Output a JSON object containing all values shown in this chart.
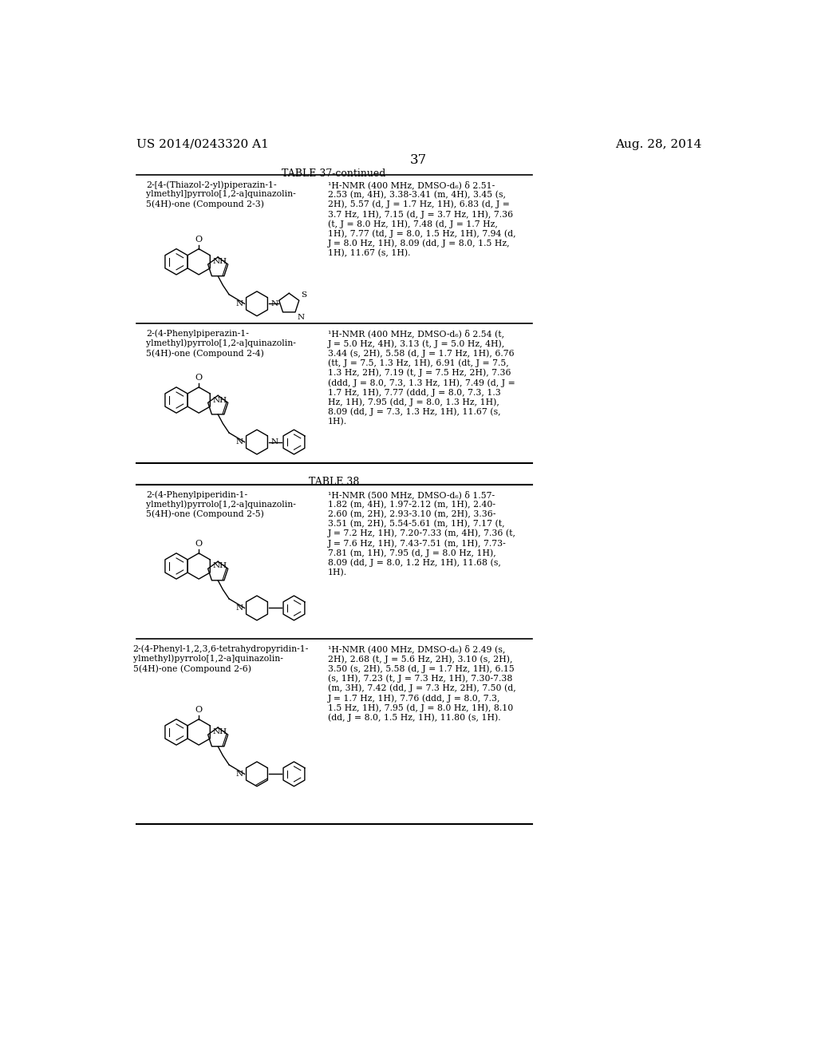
{
  "background_color": "#ffffff",
  "header": {
    "left_text": "US 2014/0243320 A1",
    "right_text": "Aug. 28, 2014",
    "page_number": "37"
  },
  "table37_continued": {
    "title": "TABLE 37-continued",
    "rows": [
      {
        "compound_name": "2-[4-(Thiazol-2-yl)piperazin-1-\nylmethyl]pyrrolo[1,2-a]quinazolin-\n5(4H)-one (Compound 2-3)",
        "nmr_data": "¹H-NMR (400 MHz, DMSO-d₆) δ 2.51-\n2.53 (m, 4H), 3.38-3.41 (m, 4H), 3.45 (s,\n2H), 5.57 (d, J = 1.7 Hz, 1H), 6.83 (d, J =\n3.7 Hz, 1H), 7.15 (d, J = 3.7 Hz, 1H), 7.36\n(t, J = 8.0 Hz, 1H), 7.48 (d, J = 1.7 Hz,\n1H), 7.77 (td, J = 8.0, 1.5 Hz, 1H), 7.94 (d,\nJ = 8.0 Hz, 1H), 8.09 (dd, J = 8.0, 1.5 Hz,\n1H), 11.67 (s, 1H)."
      },
      {
        "compound_name": "2-(4-Phenylpiperazin-1-\nylmethyl)pyrrolo[1,2-a]quinazolin-\n5(4H)-one (Compound 2-4)",
        "nmr_data": "¹H-NMR (400 MHz, DMSO-d₆) δ 2.54 (t,\nJ = 5.0 Hz, 4H), 3.13 (t, J = 5.0 Hz, 4H),\n3.44 (s, 2H), 5.58 (d, J = 1.7 Hz, 1H), 6.76\n(tt, J = 7.5, 1.3 Hz, 1H), 6.91 (dt, J = 7.5,\n1.3 Hz, 2H), 7.19 (t, J = 7.5 Hz, 2H), 7.36\n(ddd, J = 8.0, 7.3, 1.3 Hz, 1H), 7.49 (d, J =\n1.7 Hz, 1H), 7.77 (ddd, J = 8.0, 7.3, 1.3\nHz, 1H), 7.95 (dd, J = 8.0, 1.3 Hz, 1H),\n8.09 (dd, J = 7.3, 1.3 Hz, 1H), 11.67 (s,\n1H)."
      }
    ]
  },
  "table38": {
    "title": "TABLE 38",
    "rows": [
      {
        "compound_name": "2-(4-Phenylpiperidin-1-\nylmethyl)pyrrolo[1,2-a]quinazolin-\n5(4H)-one (Compound 2-5)",
        "nmr_data": "¹H-NMR (500 MHz, DMSO-d₆) δ 1.57-\n1.82 (m, 4H), 1.97-2.12 (m, 1H), 2.40-\n2.60 (m, 2H), 2.93-3.10 (m, 2H), 3.36-\n3.51 (m, 2H), 5.54-5.61 (m, 1H), 7.17 (t,\nJ = 7.2 Hz, 1H), 7.20-7.33 (m, 4H), 7.36 (t,\nJ = 7.6 Hz, 1H), 7.43-7.51 (m, 1H), 7.73-\n7.81 (m, 1H), 7.95 (d, J = 8.0 Hz, 1H),\n8.09 (dd, J = 8.0, 1.2 Hz, 1H), 11.68 (s,\n1H)."
      },
      {
        "compound_name": "2-(4-Phenyl-1,2,3,6-tetrahydropyridin-1-\nylmethyl)pyrrolo[1,2-a]quinazolin-\n5(4H)-one (Compound 2-6)",
        "nmr_data": "¹H-NMR (400 MHz, DMSO-d₆) δ 2.49 (s,\n2H), 2.68 (t, J = 5.6 Hz, 2H), 3.10 (s, 2H),\n3.50 (s, 2H), 5.58 (d, J = 1.7 Hz, 1H), 6.15\n(s, 1H), 7.23 (t, J = 7.3 Hz, 1H), 7.30-7.38\n(m, 3H), 7.42 (dd, J = 7.3 Hz, 2H), 7.50 (d,\nJ = 1.7 Hz, 1H), 7.76 (ddd, J = 8.0, 7.3,\n1.5 Hz, 1H), 7.95 (d, J = 8.0 Hz, 1H), 8.10\n(dd, J = 8.0, 1.5 Hz, 1H), 11.80 (s, 1H)."
      }
    ]
  }
}
